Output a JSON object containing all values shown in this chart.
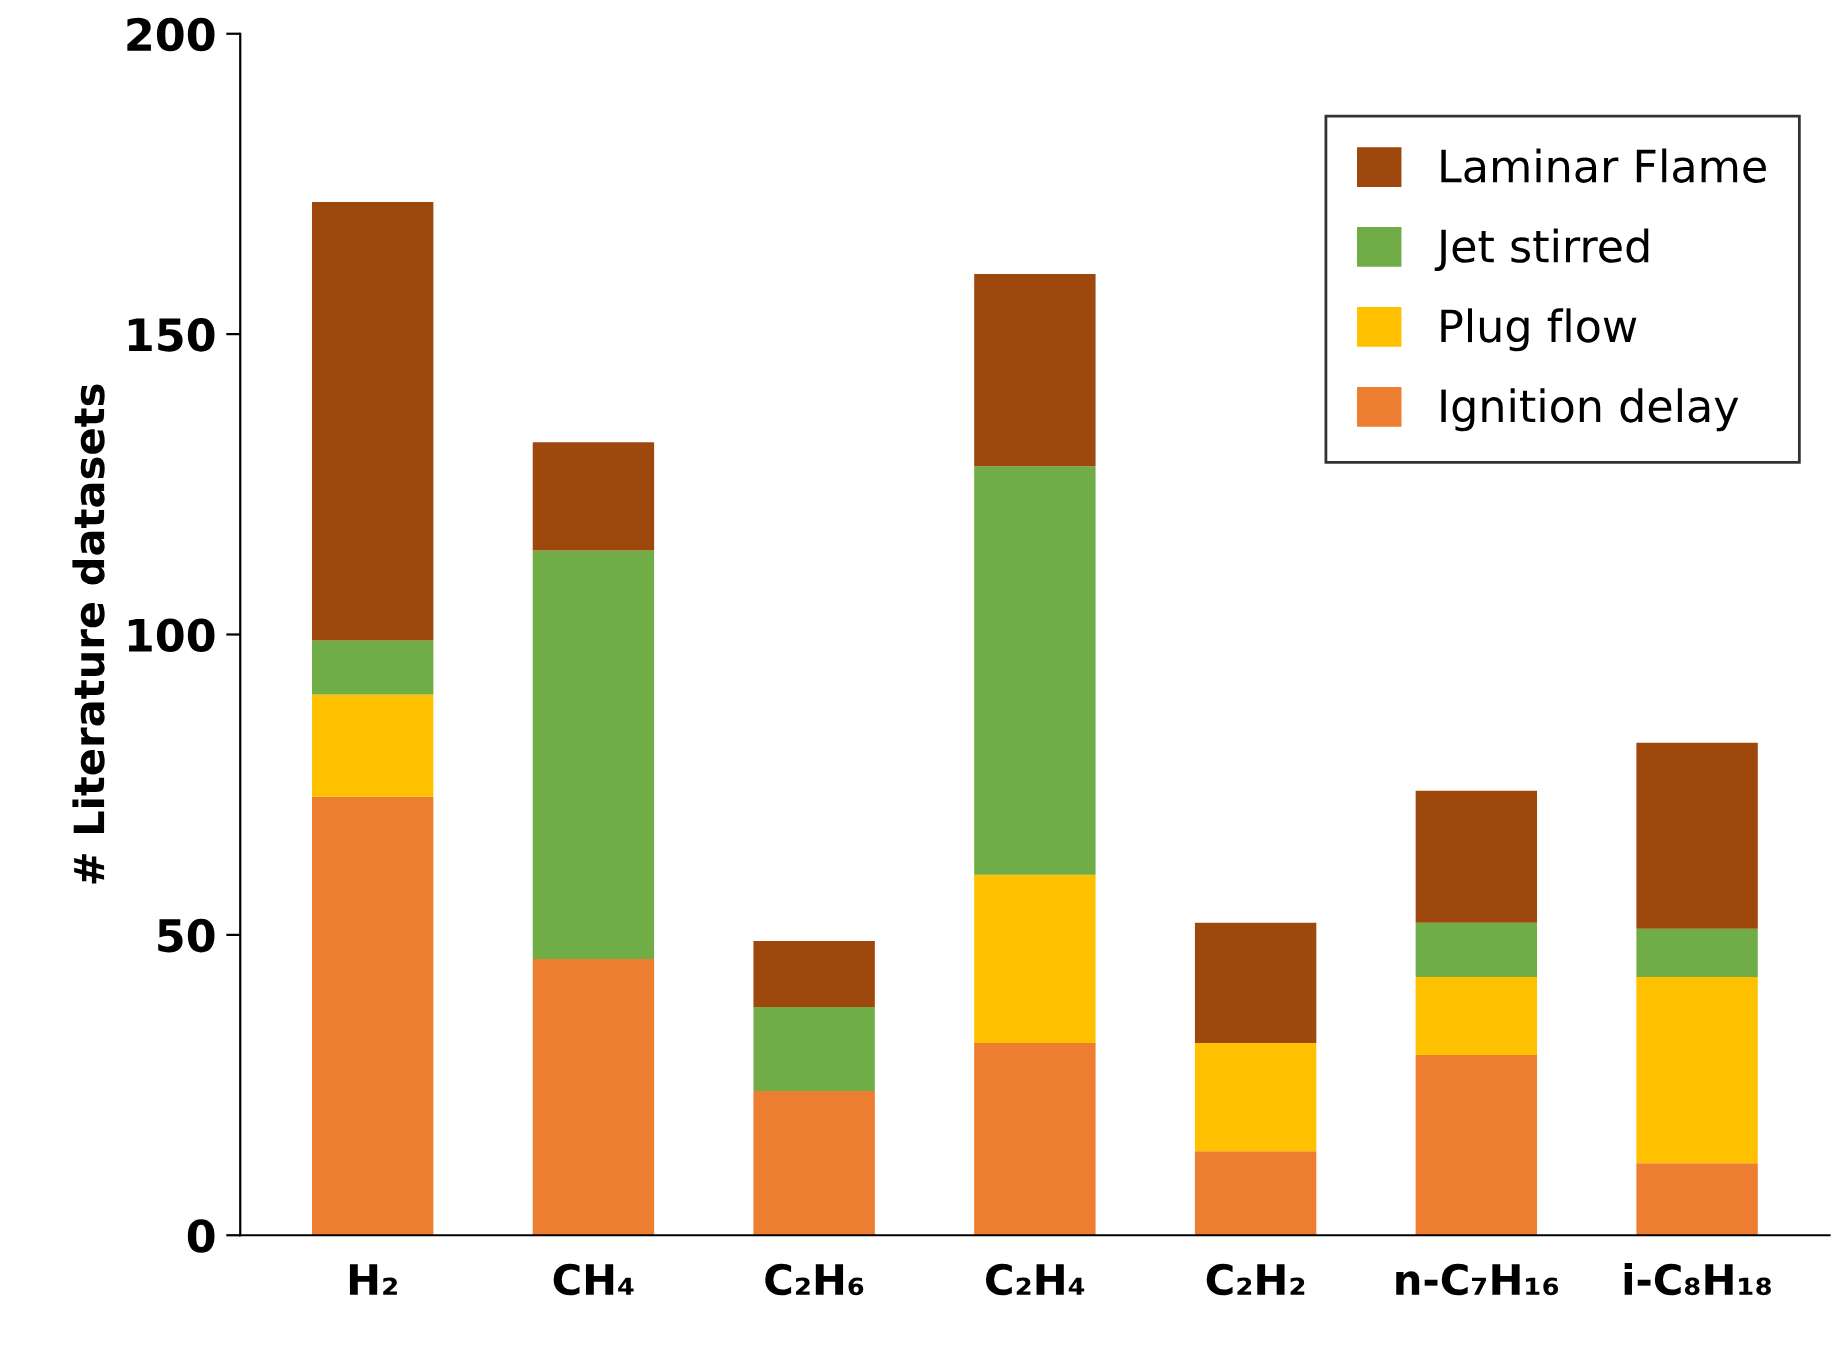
{
  "chart_data": {
    "type": "bar",
    "stacked": true,
    "ylabel": "# Literature datasets",
    "categories": [
      "H₂",
      "CH₄",
      "C₂H₆",
      "C₂H₄",
      "C₂H₂",
      "n-C₇H₁₆",
      "i-C₈H₁₈"
    ],
    "series": [
      {
        "name": "Ignition delay",
        "color": "#ed7d31",
        "values": [
          73,
          46,
          24,
          32,
          14,
          30,
          12
        ]
      },
      {
        "name": "Plug flow",
        "color": "#ffc000",
        "values": [
          17,
          0,
          0,
          28,
          18,
          13,
          31
        ]
      },
      {
        "name": "Jet stirred",
        "color": "#70ad47",
        "values": [
          9,
          68,
          14,
          68,
          0,
          9,
          8
        ]
      },
      {
        "name": "Laminar Flame",
        "color": "#9e480e",
        "values": [
          73,
          18,
          11,
          32,
          20,
          22,
          31
        ]
      }
    ],
    "ylim": [
      0,
      200
    ],
    "yticks": [
      0,
      50,
      100,
      150,
      200
    ],
    "grid": false,
    "legend": "top right"
  }
}
